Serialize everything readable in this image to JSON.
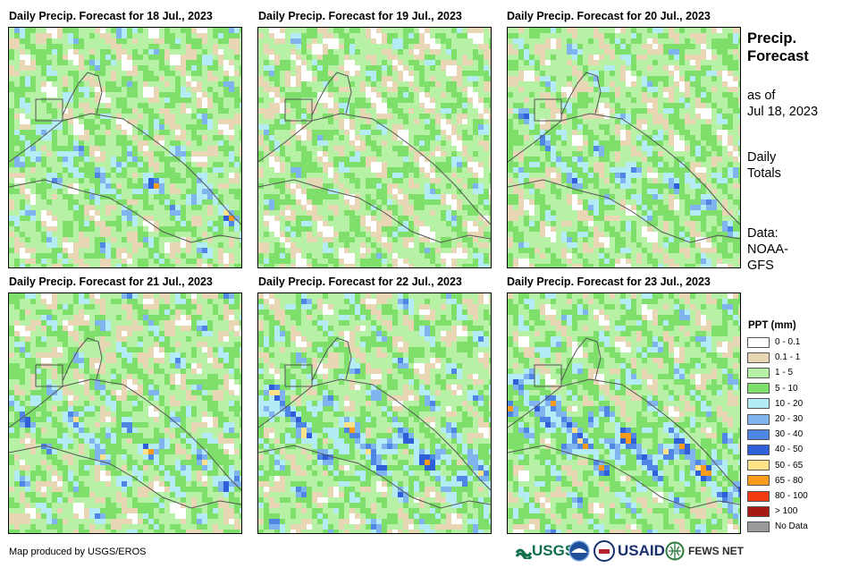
{
  "panels": [
    {
      "title": "Daily Precip. Forecast for 18 Jul., 2023"
    },
    {
      "title": "Daily Precip. Forecast for 19 Jul., 2023"
    },
    {
      "title": "Daily Precip. Forecast for 20 Jul., 2023"
    },
    {
      "title": "Daily Precip. Forecast for 21 Jul., 2023"
    },
    {
      "title": "Daily Precip. Forecast for 22 Jul., 2023"
    },
    {
      "title": "Daily Precip. Forecast for 23 Jul., 2023"
    }
  ],
  "side": {
    "title_line1": "Precip.",
    "title_line2": "Forecast",
    "asof_line1": "as of",
    "asof_line2": "Jul 18, 2023",
    "totals_line1": "Daily",
    "totals_line2": "Totals",
    "data_line1": "Data:",
    "data_line2": "NOAA-",
    "data_line3": "GFS"
  },
  "legend": {
    "title": "PPT (mm)",
    "items": [
      {
        "label": "0 - 0.1",
        "color": "#ffffff"
      },
      {
        "label": "0.1 - 1",
        "color": "#e8d6b4"
      },
      {
        "label": "1 - 5",
        "color": "#b7f1a6"
      },
      {
        "label": "5 - 10",
        "color": "#7ee06a"
      },
      {
        "label": "10 - 20",
        "color": "#b4ecf6"
      },
      {
        "label": "20 - 30",
        "color": "#7fb4ee"
      },
      {
        "label": "30 - 40",
        "color": "#4f86e4"
      },
      {
        "label": "40 - 50",
        "color": "#2f5fd8"
      },
      {
        "label": "50 - 65",
        "color": "#fde28a"
      },
      {
        "label": "65 - 80",
        "color": "#f99c1c"
      },
      {
        "label": "80 - 100",
        "color": "#f23b12"
      },
      {
        "label": "> 100",
        "color": "#a51a14"
      },
      {
        "label": "No Data",
        "color": "#9a9a9a"
      }
    ]
  },
  "footer": {
    "credit": "Map produced by USGS/EROS"
  },
  "logos": {
    "usgs": "USGS",
    "usaid": "USAID",
    "fewsnet": "FEWS NET"
  }
}
